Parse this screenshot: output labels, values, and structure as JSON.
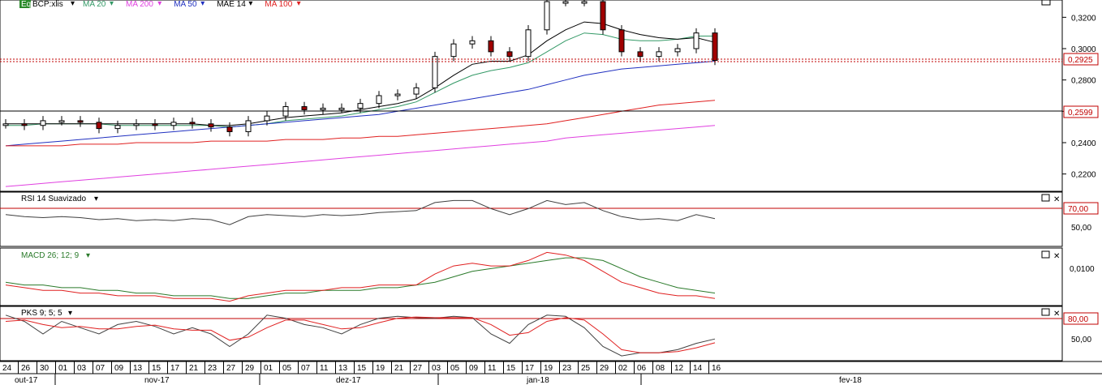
{
  "main_panel": {
    "ticker_badge": "Eq",
    "ticker": "BCP:xlis",
    "indicators": [
      {
        "label": "MA 20",
        "color": "#339966"
      },
      {
        "label": "MA 200",
        "color": "#e040e0"
      },
      {
        "label": "MA 50",
        "color": "#2030c0"
      },
      {
        "label": "MAE 14",
        "color": "#000000"
      },
      {
        "label": "MA 100",
        "color": "#e02020"
      }
    ],
    "price_ticks": [
      "0,3200",
      "0,3000",
      "0,2800",
      "0,2600",
      "0,2400",
      "0,2200"
    ],
    "last_price": "0,2925",
    "ref_price": "0,2599"
  },
  "rsi_panel": {
    "title": "RSI 14 Suavizado",
    "level_70": "70,00",
    "level_50": "50,00"
  },
  "macd_panel": {
    "title": "MACD 26; 12; 9",
    "tick": "0,0100"
  },
  "pks_panel": {
    "title": "PKS 9; 5; 5",
    "level_80": "80,00",
    "level_50": "50,00"
  },
  "date_axis": {
    "days": [
      "24",
      "26",
      "30",
      "01",
      "03",
      "07",
      "09",
      "13",
      "15",
      "17",
      "21",
      "23",
      "27",
      "29",
      "01",
      "05",
      "07",
      "11",
      "13",
      "15",
      "19",
      "21",
      "27",
      "03",
      "05",
      "09",
      "11",
      "15",
      "17",
      "19",
      "23",
      "25",
      "29",
      "02",
      "06",
      "08",
      "12",
      "14",
      "16"
    ],
    "months": [
      "out-17",
      "nov-17",
      "dez-17",
      "jan-18",
      "fev-18"
    ]
  },
  "chart_data": {
    "type": "line",
    "title": "BCP:xlis",
    "y_range": [
      0.21,
      0.33
    ],
    "x": [
      "24",
      "26",
      "30",
      "01",
      "03",
      "07",
      "09",
      "13",
      "15",
      "17",
      "21",
      "23",
      "27",
      "29",
      "01",
      "05",
      "07",
      "11",
      "13",
      "15",
      "19",
      "21",
      "27",
      "03",
      "05",
      "09",
      "11",
      "15",
      "17",
      "19",
      "23",
      "25",
      "29",
      "02",
      "06",
      "08",
      "12",
      "14",
      "16"
    ],
    "series": [
      {
        "name": "BCP:xlis",
        "values": [
          0.252,
          0.251,
          0.254,
          0.254,
          0.253,
          0.249,
          0.251,
          0.252,
          0.251,
          0.253,
          0.252,
          0.25,
          0.247,
          0.254,
          0.257,
          0.263,
          0.261,
          0.262,
          0.262,
          0.265,
          0.27,
          0.271,
          0.275,
          0.295,
          0.303,
          0.305,
          0.298,
          0.295,
          0.312,
          0.33,
          0.33,
          0.33,
          0.312,
          0.298,
          0.295,
          0.298,
          0.3,
          0.31,
          0.2925
        ]
      },
      {
        "name": "MA 20",
        "values": [
          0.251,
          0.251,
          0.252,
          0.252,
          0.252,
          0.252,
          0.251,
          0.251,
          0.251,
          0.251,
          0.251,
          0.251,
          0.25,
          0.251,
          0.252,
          0.254,
          0.255,
          0.256,
          0.257,
          0.259,
          0.261,
          0.263,
          0.266,
          0.272,
          0.278,
          0.283,
          0.286,
          0.288,
          0.291,
          0.298,
          0.305,
          0.31,
          0.309,
          0.306,
          0.305,
          0.305,
          0.306,
          0.308,
          0.308
        ]
      },
      {
        "name": "MA 200",
        "values": [
          0.212,
          0.213,
          0.214,
          0.215,
          0.216,
          0.217,
          0.218,
          0.219,
          0.22,
          0.221,
          0.222,
          0.223,
          0.224,
          0.225,
          0.226,
          0.227,
          0.228,
          0.229,
          0.23,
          0.231,
          0.232,
          0.233,
          0.234,
          0.235,
          0.236,
          0.237,
          0.238,
          0.239,
          0.24,
          0.241,
          0.243,
          0.244,
          0.245,
          0.246,
          0.247,
          0.248,
          0.249,
          0.25,
          0.251
        ]
      },
      {
        "name": "MA 50",
        "values": [
          0.238,
          0.239,
          0.24,
          0.241,
          0.242,
          0.243,
          0.244,
          0.245,
          0.246,
          0.247,
          0.248,
          0.249,
          0.25,
          0.251,
          0.252,
          0.253,
          0.254,
          0.255,
          0.256,
          0.257,
          0.258,
          0.26,
          0.262,
          0.264,
          0.266,
          0.268,
          0.27,
          0.272,
          0.274,
          0.277,
          0.28,
          0.283,
          0.285,
          0.287,
          0.288,
          0.289,
          0.29,
          0.291,
          0.292
        ]
      },
      {
        "name": "MAE 14",
        "values": [
          0.252,
          0.252,
          0.252,
          0.252,
          0.252,
          0.252,
          0.252,
          0.252,
          0.252,
          0.252,
          0.252,
          0.251,
          0.251,
          0.252,
          0.254,
          0.256,
          0.257,
          0.258,
          0.259,
          0.261,
          0.263,
          0.265,
          0.268,
          0.275,
          0.283,
          0.29,
          0.292,
          0.292,
          0.296,
          0.305,
          0.312,
          0.317,
          0.316,
          0.312,
          0.309,
          0.307,
          0.306,
          0.307,
          0.304
        ]
      },
      {
        "name": "MA 100",
        "values": [
          0.238,
          0.238,
          0.238,
          0.238,
          0.239,
          0.239,
          0.239,
          0.24,
          0.24,
          0.24,
          0.24,
          0.241,
          0.241,
          0.241,
          0.241,
          0.242,
          0.242,
          0.242,
          0.243,
          0.243,
          0.244,
          0.244,
          0.245,
          0.246,
          0.247,
          0.248,
          0.249,
          0.25,
          0.251,
          0.252,
          0.254,
          0.256,
          0.258,
          0.26,
          0.262,
          0.264,
          0.265,
          0.266,
          0.267
        ]
      }
    ],
    "rsi": {
      "range": [
        30,
        80
      ],
      "values": [
        60,
        58,
        57,
        58,
        57,
        55,
        56,
        54,
        55,
        54,
        56,
        55,
        50,
        58,
        60,
        59,
        58,
        60,
        59,
        60,
        62,
        63,
        64,
        72,
        74,
        74,
        66,
        60,
        66,
        74,
        70,
        72,
        64,
        58,
        55,
        56,
        54,
        60,
        56
      ]
    },
    "macd": {
      "range": [
        -0.004,
        0.016
      ],
      "macd": [
        0.003,
        0.002,
        0.001,
        0.001,
        0.0,
        0.0,
        -0.001,
        -0.001,
        -0.001,
        -0.002,
        -0.002,
        -0.002,
        -0.003,
        -0.001,
        0.0,
        0.001,
        0.001,
        0.001,
        0.002,
        0.002,
        0.003,
        0.003,
        0.003,
        0.007,
        0.01,
        0.011,
        0.01,
        0.01,
        0.012,
        0.015,
        0.014,
        0.012,
        0.008,
        0.004,
        0.002,
        0.0,
        -0.001,
        -0.001,
        -0.002
      ],
      "signal": [
        0.004,
        0.003,
        0.003,
        0.002,
        0.002,
        0.001,
        0.001,
        0.0,
        0.0,
        -0.001,
        -0.001,
        -0.001,
        -0.002,
        -0.002,
        -0.001,
        0.0,
        0.0,
        0.001,
        0.001,
        0.001,
        0.002,
        0.002,
        0.003,
        0.004,
        0.006,
        0.008,
        0.009,
        0.01,
        0.011,
        0.012,
        0.013,
        0.013,
        0.012,
        0.009,
        0.006,
        0.004,
        0.002,
        0.001,
        0.0
      ]
    },
    "pks": {
      "range": [
        20,
        100
      ],
      "k": [
        90,
        80,
        60,
        80,
        70,
        60,
        75,
        80,
        72,
        60,
        70,
        60,
        40,
        60,
        90,
        85,
        75,
        70,
        60,
        75,
        85,
        88,
        86,
        85,
        88,
        86,
        60,
        45,
        75,
        90,
        88,
        70,
        40,
        25,
        30,
        30,
        35,
        45,
        52
      ],
      "d": [
        80,
        82,
        75,
        70,
        72,
        68,
        68,
        72,
        74,
        68,
        66,
        66,
        50,
        55,
        70,
        82,
        82,
        75,
        68,
        70,
        78,
        85,
        87,
        86,
        86,
        86,
        75,
        58,
        62,
        80,
        86,
        82,
        60,
        35,
        30,
        30,
        32,
        38,
        46
      ]
    }
  }
}
